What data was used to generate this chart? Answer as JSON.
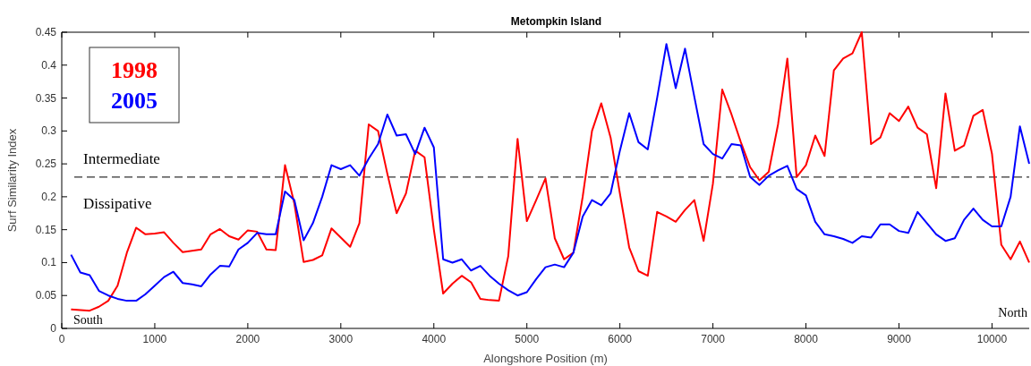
{
  "chart_data": {
    "type": "line",
    "title": "Metompkin Island",
    "xlabel": "Alongshore Position (m)",
    "ylabel": "Surf Similarity Index",
    "x": [
      100,
      200,
      300,
      400,
      500,
      600,
      700,
      800,
      900,
      1000,
      1100,
      1200,
      1300,
      1400,
      1500,
      1600,
      1700,
      1800,
      1900,
      2000,
      2100,
      2200,
      2300,
      2400,
      2500,
      2600,
      2700,
      2800,
      2900,
      3000,
      3100,
      3200,
      3300,
      3400,
      3500,
      3600,
      3700,
      3800,
      3900,
      4000,
      4100,
      4200,
      4300,
      4400,
      4500,
      4600,
      4700,
      4800,
      4900,
      5000,
      5100,
      5200,
      5300,
      5400,
      5500,
      5600,
      5700,
      5800,
      5900,
      6000,
      6100,
      6200,
      6300,
      6400,
      6500,
      6600,
      6700,
      6800,
      6900,
      7000,
      7100,
      7200,
      7300,
      7400,
      7500,
      7600,
      7700,
      7800,
      7900,
      8000,
      8100,
      8200,
      8300,
      8400,
      8500,
      8600,
      8700,
      8800,
      8900,
      9000,
      9100,
      9200,
      9300,
      9400,
      9500,
      9600,
      9700,
      9800,
      9900,
      10000,
      10100,
      10200,
      10300,
      10400
    ],
    "series": [
      {
        "name": "1998",
        "color": "#ff0000",
        "values": [
          0.029,
          0.028,
          0.027,
          0.033,
          0.042,
          0.065,
          0.115,
          0.153,
          0.143,
          0.144,
          0.146,
          0.13,
          0.116,
          0.118,
          0.12,
          0.143,
          0.151,
          0.14,
          0.135,
          0.149,
          0.147,
          0.12,
          0.119,
          0.248,
          0.19,
          0.101,
          0.104,
          0.111,
          0.152,
          0.138,
          0.124,
          0.16,
          0.31,
          0.3,
          0.235,
          0.175,
          0.205,
          0.27,
          0.26,
          0.15,
          0.053,
          0.068,
          0.08,
          0.07,
          0.045,
          0.043,
          0.042,
          0.11,
          0.288,
          0.163,
          0.195,
          0.228,
          0.137,
          0.105,
          0.115,
          0.2,
          0.3,
          0.342,
          0.29,
          0.205,
          0.123,
          0.087,
          0.08,
          0.177,
          0.17,
          0.162,
          0.18,
          0.195,
          0.133,
          0.22,
          0.363,
          0.325,
          0.283,
          0.245,
          0.225,
          0.238,
          0.31,
          0.41,
          0.23,
          0.248,
          0.293,
          0.262,
          0.392,
          0.41,
          0.418,
          0.45,
          0.28,
          0.29,
          0.327,
          0.315,
          0.337,
          0.305,
          0.295,
          0.213,
          0.357,
          0.27,
          0.278,
          0.323,
          0.332,
          0.265,
          0.127,
          0.105,
          0.132,
          0.1
        ]
      },
      {
        "name": "2005",
        "color": "#0000ff",
        "values": [
          0.112,
          0.085,
          0.081,
          0.057,
          0.05,
          0.045,
          0.042,
          0.042,
          0.052,
          0.065,
          0.078,
          0.086,
          0.069,
          0.067,
          0.064,
          0.082,
          0.095,
          0.094,
          0.12,
          0.13,
          0.145,
          0.143,
          0.143,
          0.208,
          0.195,
          0.134,
          0.16,
          0.2,
          0.248,
          0.242,
          0.248,
          0.232,
          0.258,
          0.28,
          0.325,
          0.293,
          0.295,
          0.265,
          0.305,
          0.275,
          0.105,
          0.1,
          0.105,
          0.088,
          0.095,
          0.08,
          0.068,
          0.058,
          0.05,
          0.055,
          0.075,
          0.093,
          0.097,
          0.093,
          0.115,
          0.17,
          0.195,
          0.187,
          0.205,
          0.27,
          0.327,
          0.283,
          0.272,
          0.35,
          0.432,
          0.365,
          0.425,
          0.352,
          0.28,
          0.265,
          0.258,
          0.28,
          0.278,
          0.23,
          0.218,
          0.232,
          0.24,
          0.247,
          0.212,
          0.202,
          0.162,
          0.143,
          0.14,
          0.136,
          0.13,
          0.14,
          0.138,
          0.158,
          0.158,
          0.148,
          0.145,
          0.177,
          0.16,
          0.143,
          0.133,
          0.137,
          0.165,
          0.182,
          0.165,
          0.155,
          0.155,
          0.2,
          0.307,
          0.25
        ]
      }
    ],
    "xlim": [
      0,
      10400
    ],
    "xticks": [
      0,
      1000,
      2000,
      3000,
      4000,
      5000,
      6000,
      7000,
      8000,
      9000,
      10000
    ],
    "ylim": [
      0,
      0.45
    ],
    "yticks": [
      0,
      0.05,
      0.1,
      0.15,
      0.2,
      0.25,
      0.3,
      0.35,
      0.4,
      0.45
    ],
    "ref_lines": [
      {
        "axis": "y",
        "value": 0.23,
        "color": "#333333",
        "line_style": "dashed"
      }
    ],
    "annotations": [
      "Intermediate",
      "Dissipative",
      "South",
      "North"
    ],
    "legend": "top left",
    "grid": false,
    "marker": "none",
    "line_style": "solid"
  }
}
